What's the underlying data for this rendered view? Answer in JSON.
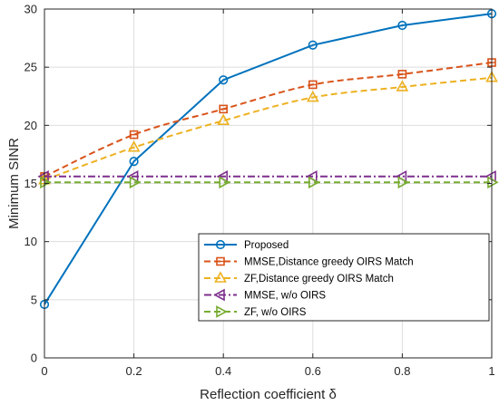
{
  "chart_data": {
    "type": "line",
    "xlabel": "Reflection coefficient δ",
    "ylabel": "Minimum SINR",
    "xlim": [
      0,
      1
    ],
    "ylim": [
      0,
      30
    ],
    "xticks": [
      0,
      0.2,
      0.4,
      0.6,
      0.8,
      1
    ],
    "xtick_labels": [
      "0",
      "0.2",
      "0.4",
      "0.6",
      "0.8",
      "1"
    ],
    "yticks": [
      0,
      5,
      10,
      15,
      20,
      25,
      30
    ],
    "ytick_labels": [
      "0",
      "5",
      "10",
      "15",
      "20",
      "25",
      "30"
    ],
    "grid": true,
    "legend_position": "bottom-right",
    "series": [
      {
        "name": "Proposed",
        "color": "#0072BD",
        "line_style": "solid",
        "marker": "circle",
        "x": [
          0,
          0.2,
          0.4,
          0.6,
          0.8,
          1
        ],
        "values": [
          4.6,
          16.9,
          23.9,
          26.9,
          28.6,
          29.6
        ],
        "smooth": false
      },
      {
        "name": "MMSE,Distance greedy OIRS Match",
        "color": "#D95319",
        "line_style": "dashed",
        "marker": "square",
        "x": [
          0,
          0.2,
          0.4,
          0.6,
          0.8,
          1
        ],
        "values": [
          15.6,
          19.2,
          21.4,
          23.5,
          24.4,
          25.4
        ],
        "smooth": true
      },
      {
        "name": "ZF,Distance greedy OIRS Match",
        "color": "#EDB120",
        "line_style": "dashed",
        "marker": "triangle-up",
        "x": [
          0,
          0.2,
          0.4,
          0.6,
          0.8,
          1
        ],
        "values": [
          15.3,
          18.1,
          20.4,
          22.4,
          23.3,
          24.1
        ],
        "smooth": true
      },
      {
        "name": "MMSE, w/o OIRS",
        "color": "#7E2F8E",
        "line_style": "dashdot",
        "marker": "triangle-left",
        "x": [
          0,
          0.2,
          0.4,
          0.6,
          0.8,
          1
        ],
        "values": [
          15.6,
          15.6,
          15.6,
          15.6,
          15.6,
          15.6
        ],
        "smooth": false
      },
      {
        "name": "ZF, w/o OIRS",
        "color": "#77AC30",
        "line_style": "dashed",
        "marker": "triangle-right",
        "x": [
          0,
          0.2,
          0.4,
          0.6,
          0.8,
          1
        ],
        "values": [
          15.1,
          15.1,
          15.1,
          15.1,
          15.1,
          15.1
        ],
        "smooth": false
      }
    ]
  }
}
